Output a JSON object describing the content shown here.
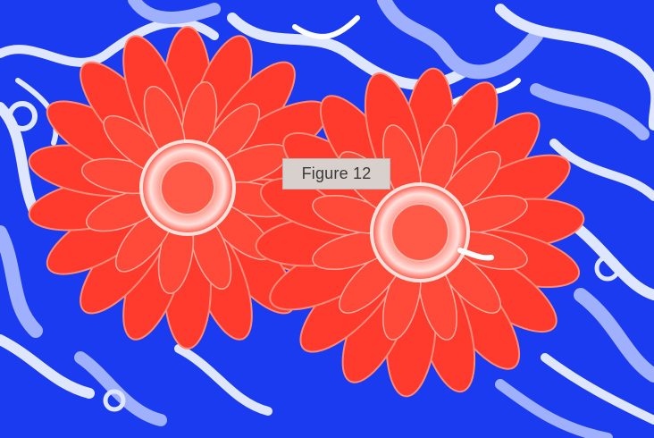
{
  "caption": {
    "text": "Figure 12"
  },
  "colors": {
    "background_blue": "#1a3bf0",
    "swirl_light": "#dfe6ff",
    "swirl_mid": "#9fb0ff",
    "petal_red": "#ff3b2e",
    "petal_light": "#ff8a78",
    "center_pink": "#ffd6d0"
  }
}
